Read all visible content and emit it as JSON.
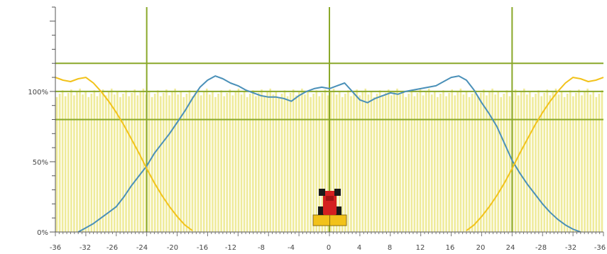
{
  "chart_data": {
    "type": "line",
    "x_tick_labels": [
      "-36",
      "-32",
      "-26",
      "-24",
      "-20",
      "-16",
      "-12",
      "-8",
      "-4",
      "0",
      "4",
      "8",
      "12",
      "16",
      "20",
      "24",
      "-28",
      "-32",
      "-36"
    ],
    "y_tick_labels": [
      "0%",
      "50%",
      "100%"
    ],
    "xlim": [
      -36,
      36
    ],
    "ylim": [
      0,
      160
    ],
    "reference_lines_y": [
      80,
      100,
      120
    ],
    "reference_lines_x": [
      -24,
      0,
      24
    ],
    "colors": {
      "blue_series": "#4a90b8",
      "yellow_series": "#f2c21a",
      "bars": "#efeb9a",
      "grid": "#8aa82a",
      "tractor_body": "#d42020",
      "tractor_base": "#f2c21a"
    },
    "series": [
      {
        "color_key": "blue_series",
        "x": [
          -33,
          -32,
          -31,
          -30,
          -29,
          -28,
          -27,
          -26,
          -25,
          -24,
          -23,
          -22,
          -21,
          -20,
          -19,
          -18,
          -17,
          -16,
          -15,
          -14,
          -13,
          -12,
          -11,
          -10,
          -9,
          -8,
          -7,
          -6,
          -5,
          -4,
          -3,
          -2,
          -1,
          0,
          1,
          2,
          3,
          4,
          5,
          6,
          7,
          8,
          9,
          10,
          11,
          12,
          13,
          14,
          15,
          16,
          17,
          18,
          19,
          20,
          21,
          22,
          23,
          24,
          25,
          26,
          27,
          28,
          29,
          30,
          31,
          32,
          33
        ],
        "y": [
          0,
          3,
          6,
          10,
          14,
          18,
          25,
          33,
          40,
          47,
          56,
          63,
          70,
          78,
          86,
          95,
          103,
          108,
          111,
          109,
          106,
          104,
          101,
          99,
          97,
          96,
          96,
          95,
          93,
          97,
          100,
          102,
          103,
          102,
          104,
          106,
          100,
          94,
          92,
          95,
          97,
          99,
          98,
          100,
          101,
          102,
          103,
          104,
          107,
          110,
          111,
          108,
          101,
          92,
          84,
          75,
          63,
          51,
          42,
          34,
          27,
          20,
          14,
          9,
          5,
          2,
          0
        ]
      },
      {
        "color_key": "yellow_series",
        "x": [
          -36,
          -35,
          -34,
          -33,
          -32,
          -31,
          -30,
          -29,
          -28,
          -27,
          -26,
          -25,
          -24,
          -23,
          -22,
          -21,
          -20,
          -19,
          -18,
          18,
          19,
          20,
          21,
          22,
          23,
          24,
          25,
          26,
          27,
          28,
          29,
          30,
          31,
          32,
          33,
          34,
          35,
          36
        ],
        "y": [
          110,
          108,
          107,
          109,
          110,
          106,
          100,
          93,
          85,
          76,
          66,
          56,
          45,
          35,
          26,
          18,
          11,
          5,
          1,
          1,
          5,
          11,
          18,
          26,
          35,
          45,
          56,
          66,
          76,
          85,
          93,
          100,
          106,
          110,
          109,
          107,
          108,
          110
        ]
      }
    ]
  }
}
